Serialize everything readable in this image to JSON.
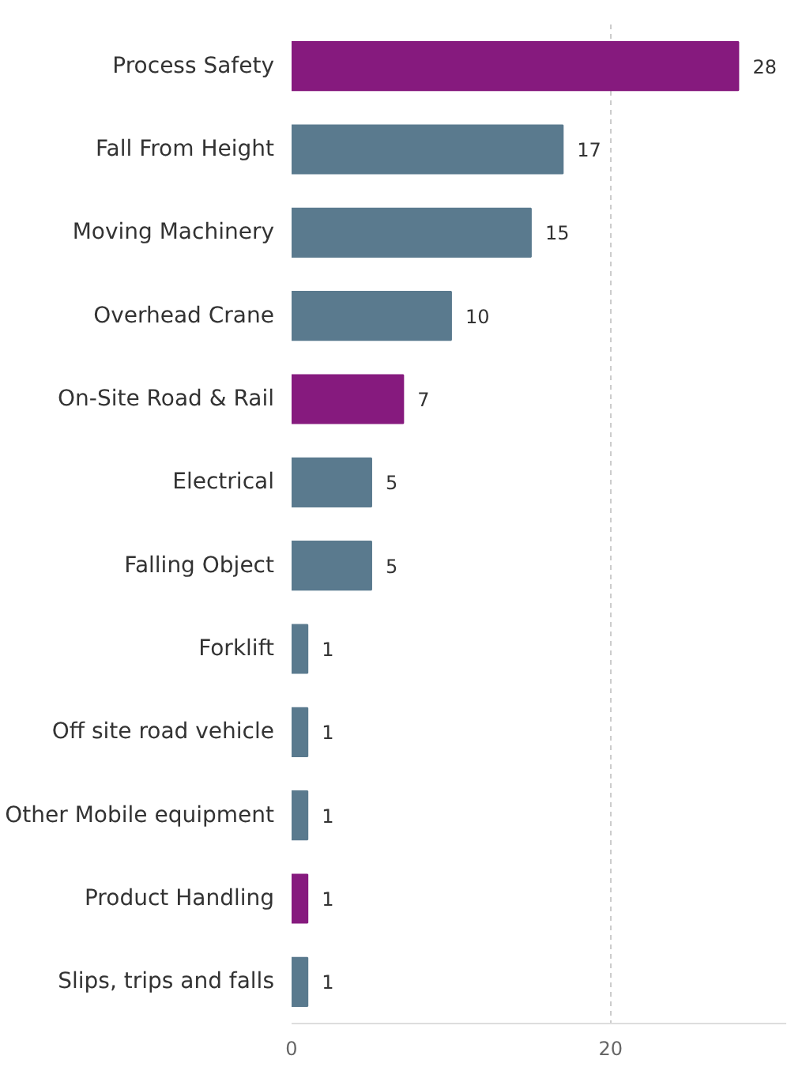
{
  "chart_data": {
    "type": "bar",
    "orientation": "horizontal",
    "categories": [
      "Process Safety",
      "Fall From Height",
      "Moving Machinery",
      "Overhead Crane",
      "On-Site Road & Rail",
      "Electrical",
      "Falling Object",
      "Forklift",
      "Off site road vehicle",
      "Other Mobile equipment",
      "Product Handling",
      "Slips, trips and falls"
    ],
    "values": [
      28,
      17,
      15,
      10,
      7,
      5,
      5,
      1,
      1,
      1,
      1,
      1
    ],
    "colors": [
      "#861a7e",
      "#5a7a8e",
      "#5a7a8e",
      "#5a7a8e",
      "#861a7e",
      "#5a7a8e",
      "#5a7a8e",
      "#5a7a8e",
      "#5a7a8e",
      "#5a7a8e",
      "#861a7e",
      "#5a7a8e"
    ],
    "xlim": [
      0,
      31
    ],
    "xticks": [
      0,
      20
    ],
    "grid": "x",
    "data_labels": true
  }
}
